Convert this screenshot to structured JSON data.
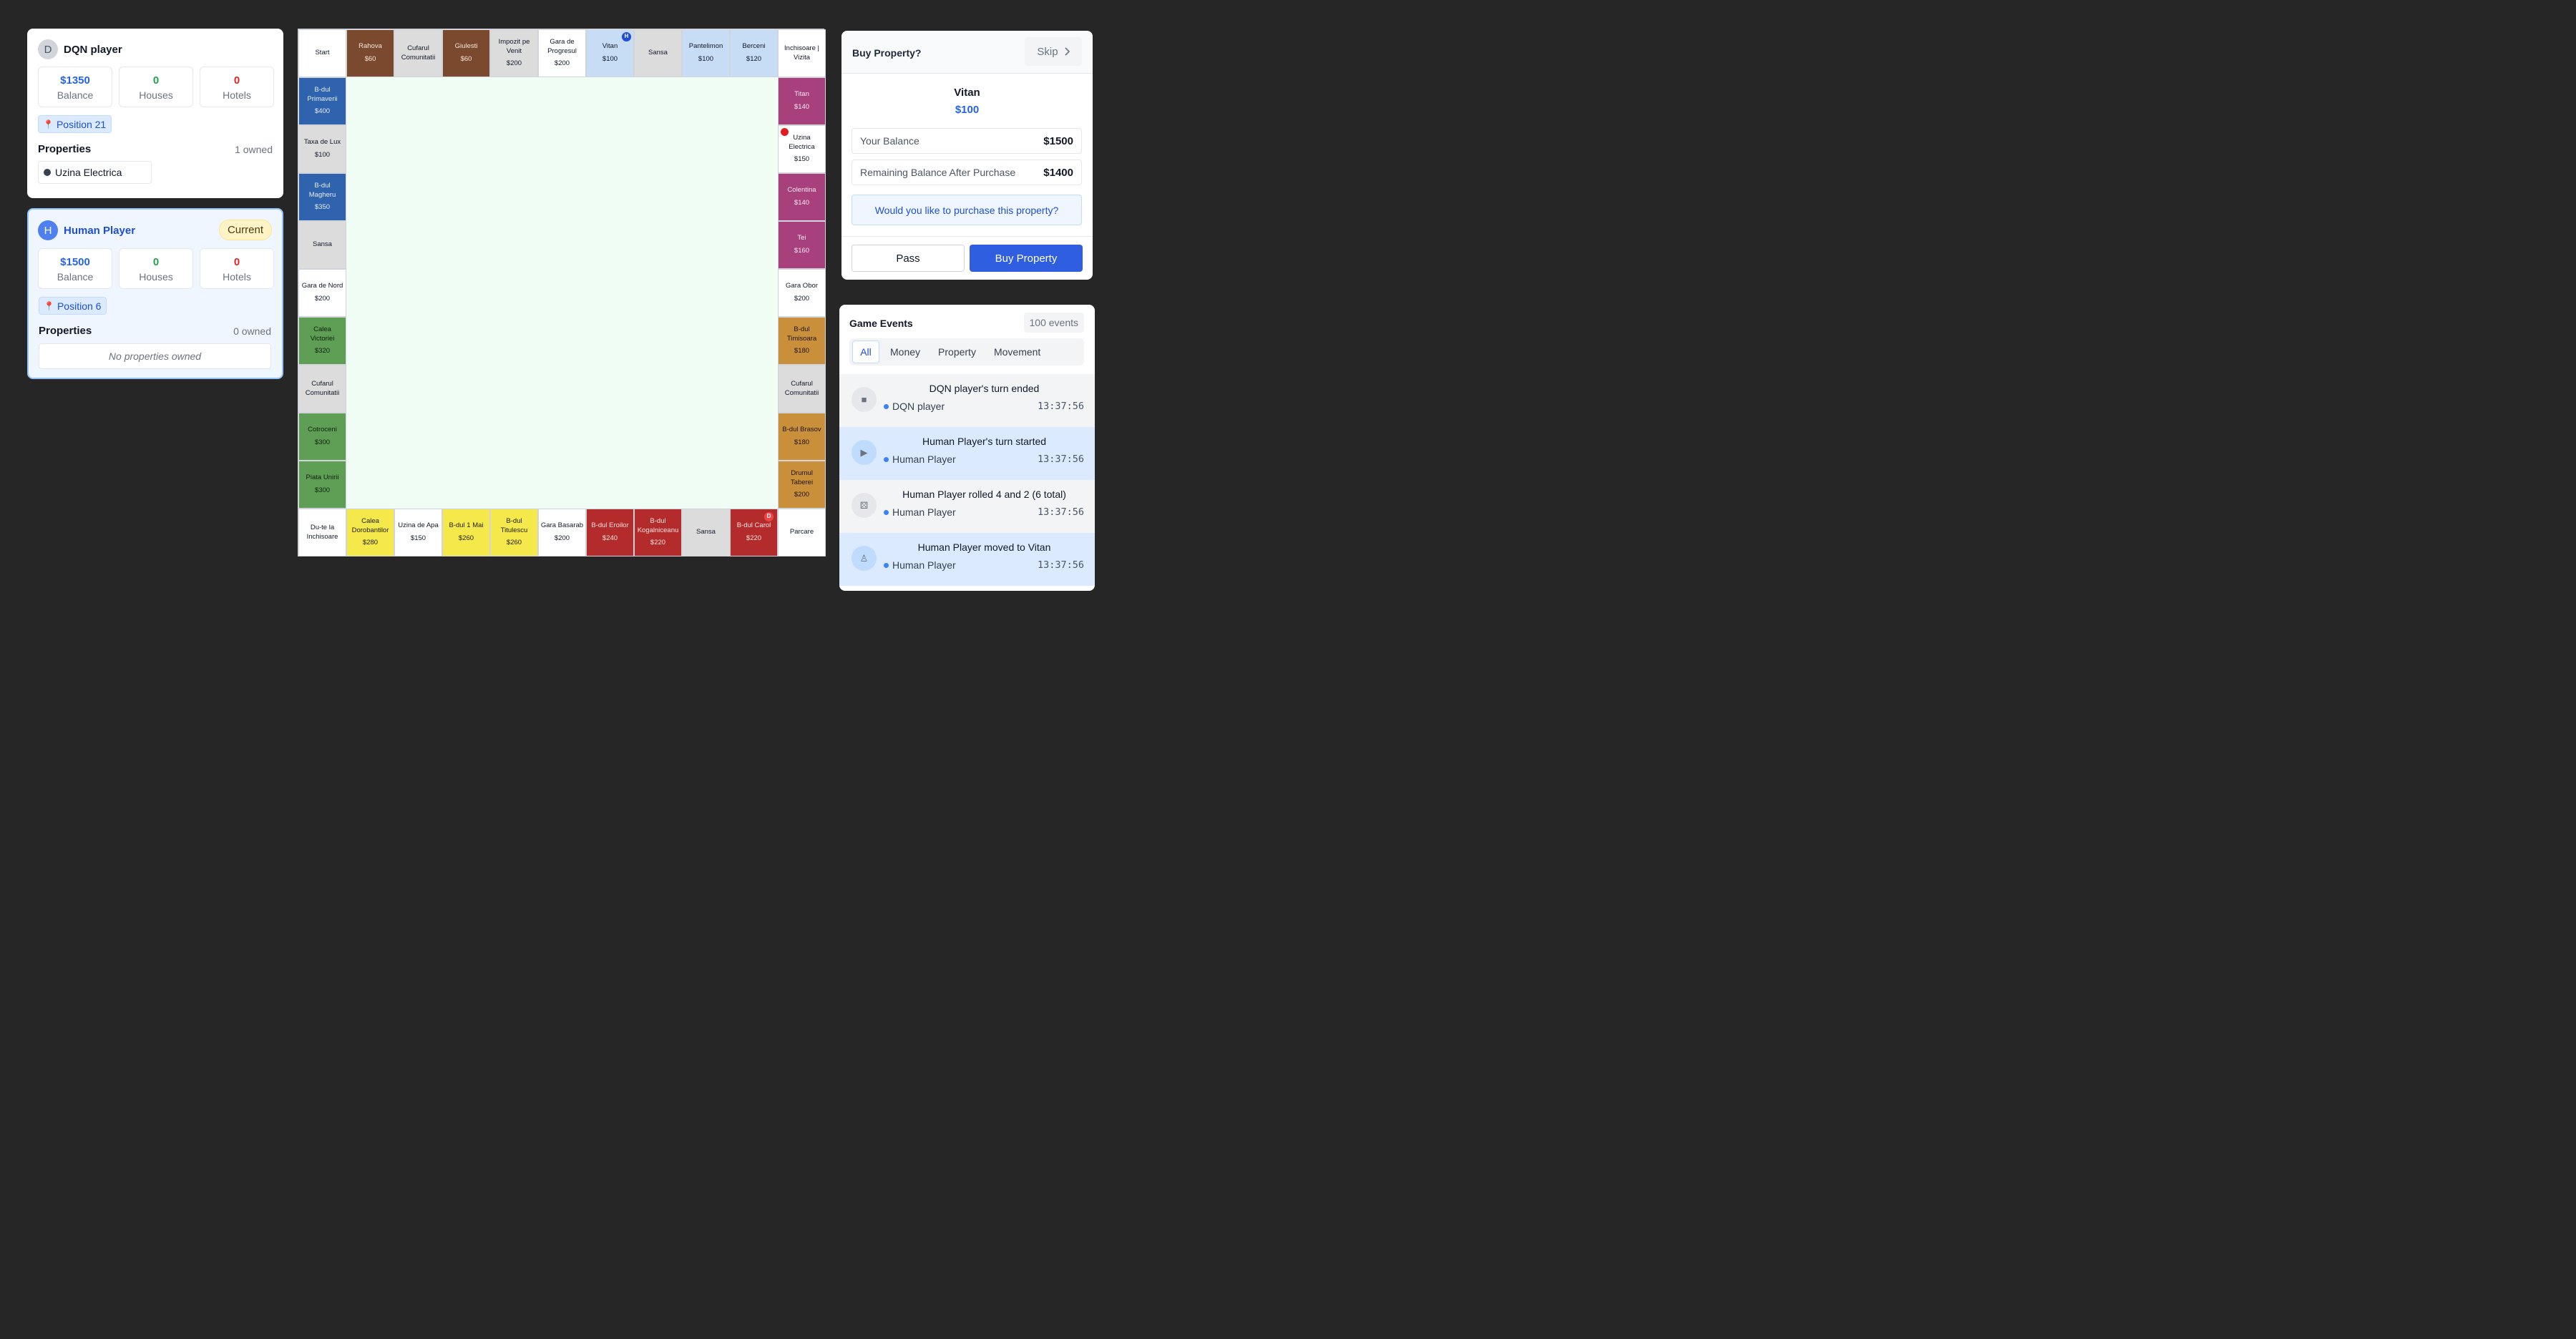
{
  "players": [
    {
      "initial": "D",
      "name": "DQN player",
      "current": false,
      "current_label": "",
      "balance": "$1350",
      "balance_label": "Balance",
      "houses": "0",
      "houses_label": "Houses",
      "hotels": "0",
      "hotels_label": "Hotels",
      "position": "Position 21",
      "properties_label": "Properties",
      "owned": "1 owned",
      "properties": [
        "Uzina Electrica"
      ]
    },
    {
      "initial": "H",
      "name": "Human Player",
      "current": true,
      "current_label": "Current",
      "balance": "$1500",
      "balance_label": "Balance",
      "houses": "0",
      "houses_label": "Houses",
      "hotels": "0",
      "hotels_label": "Hotels",
      "position": "Position 6",
      "properties_label": "Properties",
      "owned": "0 owned",
      "no_properties": "No properties owned"
    }
  ],
  "board": {
    "top": [
      {
        "name": "Start",
        "price": "",
        "color": "white"
      },
      {
        "name": "Rahova",
        "price": "$60",
        "color": "brown"
      },
      {
        "name": "Cufarul Comunitatii",
        "price": "",
        "color": "grey"
      },
      {
        "name": "Giulesti",
        "price": "$60",
        "color": "brown"
      },
      {
        "name": "Impozit pe Venit",
        "price": "$200",
        "color": "grey"
      },
      {
        "name": "Gara de Progresul",
        "price": "$200",
        "color": "white"
      },
      {
        "name": "Vitan",
        "price": "$100",
        "color": "lblue",
        "token": "H"
      },
      {
        "name": "Sansa",
        "price": "",
        "color": "grey"
      },
      {
        "name": "Pantelimon",
        "price": "$100",
        "color": "lblue"
      },
      {
        "name": "Berceni",
        "price": "$120",
        "color": "lblue"
      },
      {
        "name": "Inchisoare | Vizita",
        "price": "",
        "color": "white"
      }
    ],
    "right": [
      {
        "name": "Titan",
        "price": "$140",
        "color": "pink"
      },
      {
        "name": "Uzina Electrica",
        "price": "$150",
        "color": "white",
        "owner_dot": true
      },
      {
        "name": "Colentina",
        "price": "$140",
        "color": "pink"
      },
      {
        "name": "Tei",
        "price": "$160",
        "color": "pink"
      },
      {
        "name": "Gara Obor",
        "price": "$200",
        "color": "white"
      },
      {
        "name": "B-dul Timisoara",
        "price": "$180",
        "color": "orange"
      },
      {
        "name": "Cufarul Comunitatii",
        "price": "",
        "color": "grey"
      },
      {
        "name": "B-dul Brasov",
        "price": "$180",
        "color": "orange"
      },
      {
        "name": "Drumul Taberei",
        "price": "$200",
        "color": "orange"
      }
    ],
    "bottom": [
      {
        "name": "Du-te la Inchisoare",
        "price": "",
        "color": "white"
      },
      {
        "name": "Calea Dorobantilor",
        "price": "$280",
        "color": "yellow"
      },
      {
        "name": "Uzina de Apa",
        "price": "$150",
        "color": "white"
      },
      {
        "name": "B-dul 1 Mai",
        "price": "$260",
        "color": "yellow"
      },
      {
        "name": "B-dul Titulescu",
        "price": "$260",
        "color": "yellow"
      },
      {
        "name": "Gara Basarab",
        "price": "$200",
        "color": "white"
      },
      {
        "name": "B-dul Eroilor",
        "price": "$240",
        "color": "red"
      },
      {
        "name": "B-dul Kogalniceanu",
        "price": "$220",
        "color": "red"
      },
      {
        "name": "Sansa",
        "price": "",
        "color": "grey"
      },
      {
        "name": "B-dul Carol",
        "price": "$220",
        "color": "red",
        "token": "D"
      },
      {
        "name": "Parcare",
        "price": "",
        "color": "white"
      }
    ],
    "left": [
      {
        "name": "B-dul Primaverii",
        "price": "$400",
        "color": "dblue"
      },
      {
        "name": "Taxa de Lux",
        "price": "$100",
        "color": "grey"
      },
      {
        "name": "B-dul Magheru",
        "price": "$350",
        "color": "dblue"
      },
      {
        "name": "Sansa",
        "price": "",
        "color": "grey"
      },
      {
        "name": "Gara de Nord",
        "price": "$200",
        "color": "white"
      },
      {
        "name": "Calea Victoriei",
        "price": "$320",
        "color": "green"
      },
      {
        "name": "Cufarul Comunitatii",
        "price": "",
        "color": "grey"
      },
      {
        "name": "Cotroceni",
        "price": "$300",
        "color": "green"
      },
      {
        "name": "Piata Unirii",
        "price": "$300",
        "color": "green"
      }
    ]
  },
  "buy": {
    "title": "Buy Property?",
    "skip_label": "Skip",
    "property_name": "Vitan",
    "property_price": "$100",
    "balance_label": "Your Balance",
    "balance_value": "$1500",
    "remaining_label": "Remaining Balance After Purchase",
    "remaining_value": "$1400",
    "question": "Would you like to purchase this property?",
    "pass_label": "Pass",
    "buy_label": "Buy Property"
  },
  "events": {
    "title": "Game Events",
    "count": "100 events",
    "filters": [
      "All",
      "Money",
      "Property",
      "Movement"
    ],
    "active_filter": "All",
    "items": [
      {
        "icon": "stop-icon",
        "glyph": "■",
        "message": "DQN player's turn ended",
        "player": "DQN player",
        "time": "13:37:56",
        "style": "gray"
      },
      {
        "icon": "play-icon",
        "glyph": "▶",
        "message": "Human Player's turn started",
        "player": "Human Player",
        "time": "13:37:56",
        "style": "blue"
      },
      {
        "icon": "dice-icon",
        "glyph": "⚄",
        "message": "Human Player rolled 4 and 2 (6 total)",
        "player": "Human Player",
        "time": "13:37:56",
        "style": "gray"
      },
      {
        "icon": "walking-icon",
        "glyph": "♙",
        "message": "Human Player moved to Vitan",
        "player": "Human Player",
        "time": "13:37:56",
        "style": "blue"
      }
    ]
  }
}
